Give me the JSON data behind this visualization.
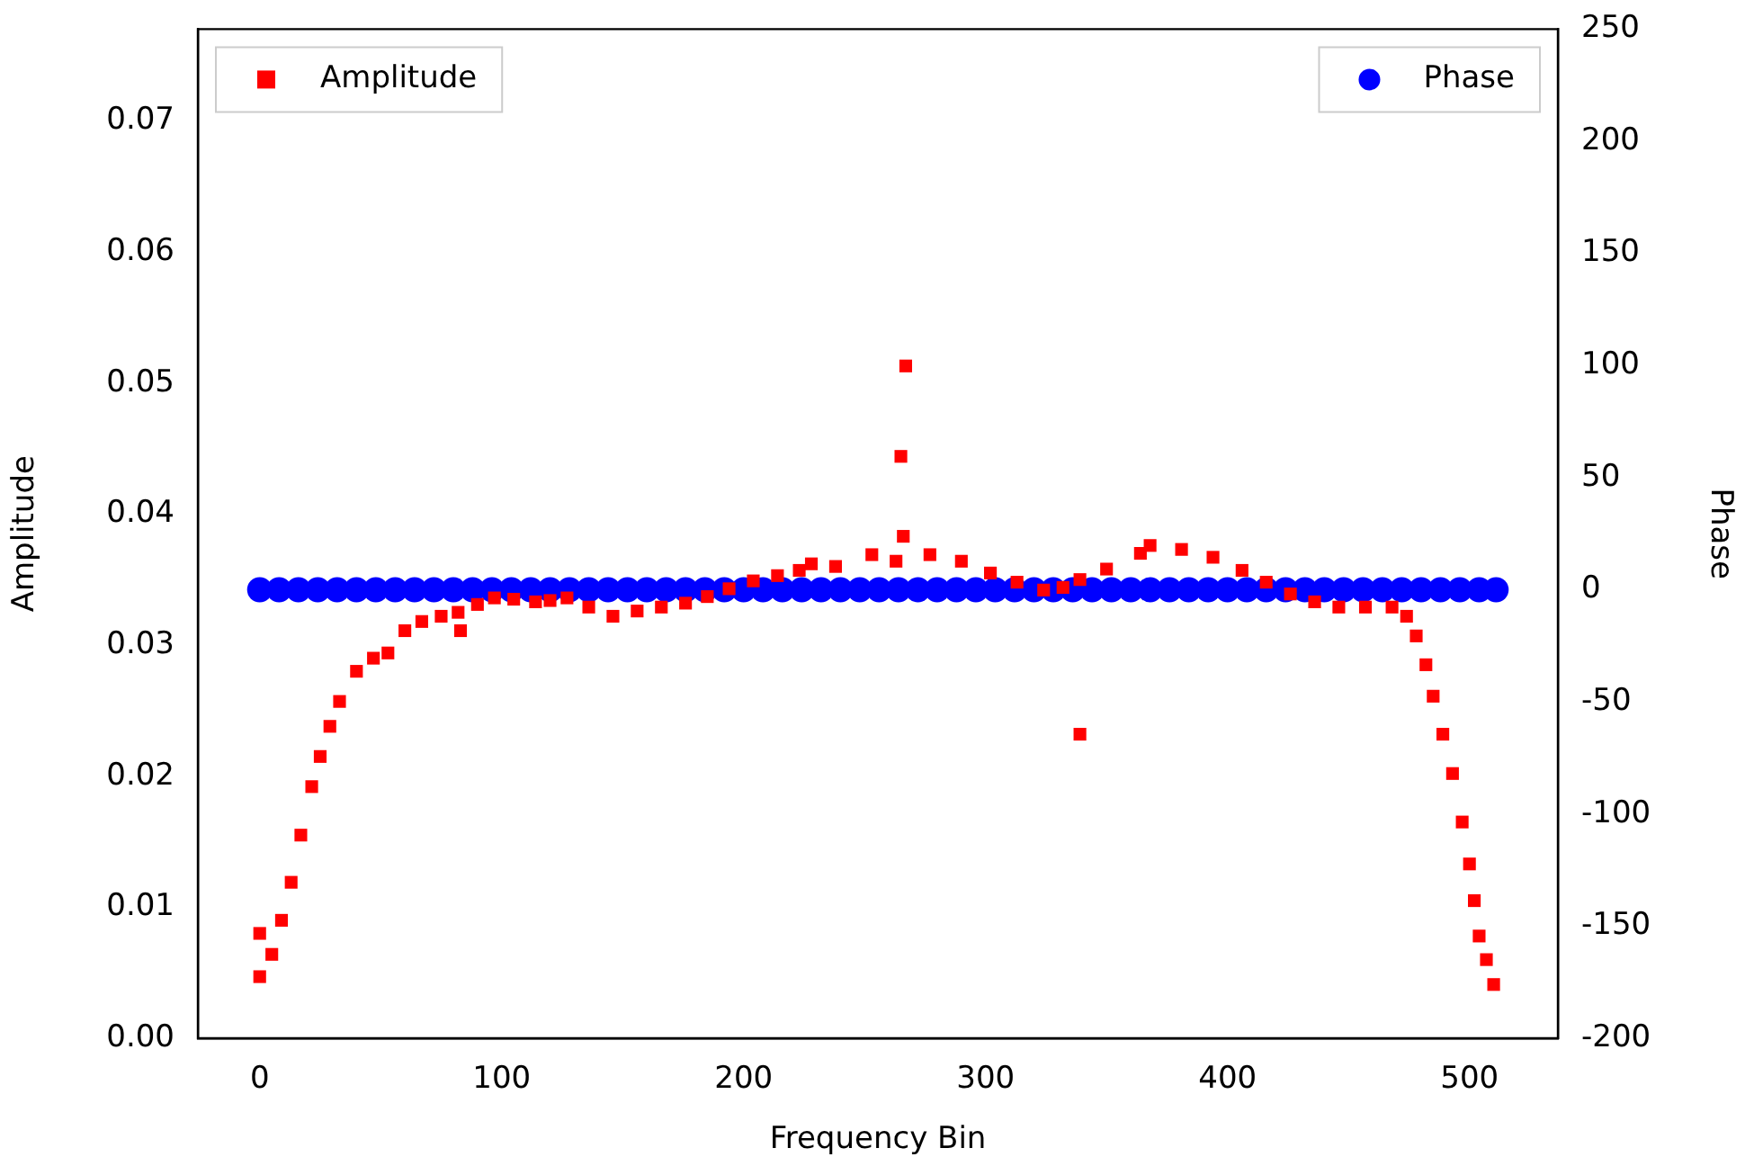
{
  "chart_data": {
    "type": "scatter",
    "xlabel": "Frequency Bin",
    "ylabel": "Amplitude",
    "y2label": "Phase",
    "xlim": [
      -25.55,
      536.55
    ],
    "xticks": [
      0,
      100,
      200,
      300,
      400,
      500
    ],
    "ylim": [
      0,
      0.077
    ],
    "yticks": [
      {
        "value": 0,
        "label": "0.00"
      },
      {
        "value": 0.01,
        "label": "0.01"
      },
      {
        "value": 0.02,
        "label": "0.02"
      },
      {
        "value": 0.03,
        "label": "0.03"
      },
      {
        "value": 0.04,
        "label": "0.04"
      },
      {
        "value": 0.05,
        "label": "0.05"
      },
      {
        "value": 0.06,
        "label": "0.06"
      },
      {
        "value": 0.07,
        "label": "0.07"
      }
    ],
    "y2lim": [
      -200,
      250
    ],
    "y2ticks": [
      -200,
      -150,
      -100,
      -50,
      0,
      50,
      100,
      150,
      200,
      250
    ],
    "legend": "top",
    "grid": false,
    "series": [
      {
        "name": "Amplitude",
        "color": "#ff0000",
        "marker": "square",
        "axis": "y",
        "x": [
          0,
          0,
          5,
          9,
          13,
          17,
          21.5,
          25,
          29,
          33,
          40,
          47,
          53,
          60,
          67,
          75,
          82,
          83,
          90,
          97,
          105,
          114,
          120,
          127,
          136,
          146,
          156,
          166,
          176,
          185,
          194,
          204,
          214,
          223,
          228,
          238,
          253,
          263,
          265,
          266,
          267,
          277,
          290,
          302,
          313,
          324,
          332,
          339,
          339,
          350,
          364,
          368,
          381,
          394,
          406,
          416,
          426,
          436,
          446,
          457,
          468,
          474,
          478,
          482,
          485,
          489,
          493,
          497,
          500,
          502,
          504,
          507,
          510
        ],
        "values": [
          0.008,
          0.0047,
          0.0064,
          0.009,
          0.0119,
          0.0155,
          0.0192,
          0.0215,
          0.0238,
          0.0257,
          0.028,
          0.029,
          0.0294,
          0.0311,
          0.0318,
          0.0322,
          0.0325,
          0.0311,
          0.0331,
          0.0336,
          0.0335,
          0.0333,
          0.0334,
          0.0336,
          0.0329,
          0.0322,
          0.0326,
          0.0329,
          0.0332,
          0.0337,
          0.0343,
          0.0349,
          0.0353,
          0.0357,
          0.0362,
          0.036,
          0.0369,
          0.0364,
          0.0444,
          0.0383,
          0.0513,
          0.0369,
          0.0364,
          0.0355,
          0.0348,
          0.0342,
          0.0344,
          0.035,
          0.0232,
          0.0358,
          0.037,
          0.0376,
          0.0373,
          0.0367,
          0.0357,
          0.0348,
          0.0339,
          0.0333,
          0.0329,
          0.0329,
          0.0329,
          0.0322,
          0.0307,
          0.0285,
          0.0261,
          0.0232,
          0.0202,
          0.0165,
          0.0133,
          0.0105,
          0.0078,
          0.006,
          0.0041
        ]
      },
      {
        "name": "Phase",
        "color": "#0000ff",
        "marker": "circle",
        "axis": "y2",
        "x": [
          0,
          8,
          16,
          24,
          32,
          40,
          48,
          56,
          64,
          72,
          80,
          88,
          96,
          104,
          112,
          120,
          128,
          136,
          144,
          152,
          160,
          168,
          176,
          184,
          192,
          200,
          208,
          216,
          224,
          232,
          240,
          248,
          256,
          264,
          272,
          280,
          288,
          296,
          304,
          312,
          320,
          328,
          336,
          344,
          352,
          360,
          368,
          376,
          384,
          392,
          400,
          408,
          416,
          424,
          432,
          440,
          448,
          456,
          464,
          472,
          480,
          488,
          496,
          504,
          511
        ],
        "values": [
          0,
          0,
          0,
          0,
          0,
          0,
          0,
          0,
          0,
          0,
          0,
          0,
          0,
          0,
          0,
          0,
          0,
          0,
          0,
          0,
          0,
          0,
          0,
          0,
          0,
          0,
          0,
          0,
          0,
          0,
          0,
          0,
          0,
          0,
          0,
          0,
          0,
          0,
          0,
          0,
          0,
          0,
          0,
          0,
          0,
          0,
          0,
          0,
          0,
          0,
          0,
          0,
          0,
          0,
          0,
          0,
          0,
          0,
          0,
          0,
          0,
          0,
          0,
          0,
          0
        ]
      }
    ]
  }
}
